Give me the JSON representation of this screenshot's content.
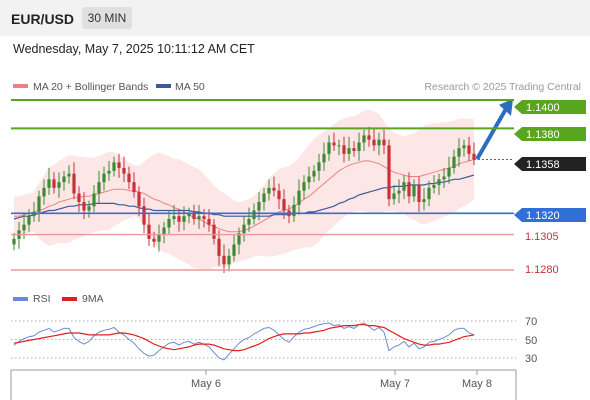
{
  "header": {
    "instrument": "EUR/USD",
    "timeframe": "30 MIN",
    "datetime": "Wednesday, May 7, 2025 10:11:12 AM CET"
  },
  "legend": {
    "ma20": "MA 20 + Bollinger Bands",
    "ma50": "MA 50",
    "copyright": "Research © 2025 Trading Central"
  },
  "colors": {
    "resistance": "#5aa51e",
    "support_main": "#2f6fd6",
    "support_red": "#e89a9a",
    "candle_up": "#3c8a34",
    "candle_down": "#c8303a",
    "bollinger_fill": "#fde2e2",
    "ma20": "#f08080",
    "ma50": "#3b5a9a",
    "rsi": "#6a8ad8",
    "rsi_ma": "#e02020",
    "arrow": "#2d6cc0"
  },
  "levels": {
    "r2": "1.1400",
    "r1": "1.1380",
    "current": "1.1358",
    "s1": "1.1320",
    "s2": "1.1305",
    "s3": "1.1280"
  },
  "rsi_legend": {
    "rsi": "RSI",
    "ma": "9MA"
  },
  "rsi_axis": [
    "70",
    "50",
    "30"
  ],
  "x_axis": [
    "May 6",
    "May 7",
    "May 8"
  ],
  "chart_data": [
    {
      "type": "candlestick",
      "title": "EUR/USD",
      "timeframe": "30 MIN",
      "ylim": [
        1.1275,
        1.1415
      ],
      "levels": [
        {
          "value": 1.14,
          "kind": "resistance"
        },
        {
          "value": 1.138,
          "kind": "resistance"
        },
        {
          "value": 1.1358,
          "kind": "last price"
        },
        {
          "value": 1.132,
          "kind": "pivot"
        },
        {
          "value": 1.1305,
          "kind": "support"
        },
        {
          "value": 1.128,
          "kind": "support"
        }
      ],
      "series": [
        {
          "name": "Close",
          "values": [
            1.1302,
            1.1308,
            1.1312,
            1.1318,
            1.1321,
            1.1332,
            1.1338,
            1.1344,
            1.1338,
            1.1342,
            1.1346,
            1.1348,
            1.1334,
            1.1328,
            1.1322,
            1.1325,
            1.1334,
            1.1342,
            1.1348,
            1.135,
            1.1356,
            1.1352,
            1.1348,
            1.1342,
            1.1335,
            1.1325,
            1.1312,
            1.1302,
            1.13,
            1.1305,
            1.131,
            1.1316,
            1.1318,
            1.1314,
            1.1318,
            1.132,
            1.1316,
            1.1318,
            1.1316,
            1.1312,
            1.1302,
            1.129,
            1.1284,
            1.129,
            1.1298,
            1.1306,
            1.1312,
            1.1316,
            1.1322,
            1.1328,
            1.1334,
            1.1338,
            1.1336,
            1.133,
            1.1322,
            1.1318,
            1.1326,
            1.1336,
            1.1342,
            1.1346,
            1.135,
            1.1356,
            1.1362,
            1.137,
            1.1368,
            1.1368,
            1.1362,
            1.1366,
            1.1364,
            1.137,
            1.1375,
            1.1372,
            1.1368,
            1.1372,
            1.1368,
            1.133,
            1.1334,
            1.1336,
            1.1342,
            1.1332,
            1.134,
            1.1328,
            1.133,
            1.1338,
            1.134,
            1.1344,
            1.1346,
            1.1352,
            1.136,
            1.1366,
            1.1368,
            1.1362,
            1.1358
          ]
        },
        {
          "name": "MA 20",
          "values": [
            1.1318,
            1.1318,
            1.1319,
            1.132,
            1.1321,
            1.1322,
            1.1323,
            1.1325,
            1.1326,
            1.1328,
            1.1329,
            1.133,
            1.1331,
            1.1331,
            1.1332,
            1.1332,
            1.1333,
            1.1334,
            1.1335,
            1.1336,
            1.1337,
            1.1337,
            1.1337,
            1.1336,
            1.1336,
            1.1335,
            1.1334,
            1.1332,
            1.133,
            1.1329,
            1.1327,
            1.1326,
            1.1324,
            1.1323,
            1.1321,
            1.1319,
            1.1317,
            1.1316,
            1.1314,
            1.1312,
            1.1311,
            1.1309,
            1.1308,
            1.1307,
            1.1307,
            1.1307,
            1.1308,
            1.1309,
            1.1311,
            1.1313,
            1.1315,
            1.1317,
            1.1319,
            1.1321,
            1.1322,
            1.1323,
            1.1325,
            1.1327,
            1.133,
            1.1332,
            1.1335,
            1.1338,
            1.1341,
            1.1344,
            1.1347,
            1.135,
            1.1352,
            1.1354,
            1.1355,
            1.1356,
            1.1357,
            1.1357,
            1.1356,
            1.1355,
            1.1353,
            1.1351,
            1.1349,
            1.1348,
            1.1347,
            1.1346,
            1.1346,
            1.1346,
            1.1347,
            1.1348,
            1.1349,
            1.135,
            1.1351,
            1.1352,
            1.1353,
            1.1355,
            1.1356,
            1.1357,
            1.1358
          ]
        },
        {
          "name": "MA 50",
          "values": [
            1.1316,
            1.1317,
            1.1318,
            1.1318,
            1.1319,
            1.132,
            1.1321,
            1.1322,
            1.1322,
            1.1323,
            1.1324,
            1.1325,
            1.1325,
            1.1326,
            1.1326,
            1.1326,
            1.1327,
            1.1327,
            1.1327,
            1.1327,
            1.1327,
            1.1326,
            1.1326,
            1.1325,
            1.1325,
            1.1324,
            1.1323,
            1.1323,
            1.1322,
            1.1322,
            1.1322,
            1.1322,
            1.1322,
            1.1322,
            1.1322,
            1.1322,
            1.1321,
            1.1321,
            1.132,
            1.132,
            1.1319,
            1.1319,
            1.1318,
            1.1318,
            1.1318,
            1.1318,
            1.1318,
            1.1318,
            1.1318,
            1.1318,
            1.1318,
            1.1318,
            1.1319,
            1.1319,
            1.1319,
            1.1319,
            1.132,
            1.132,
            1.132,
            1.1321,
            1.1321,
            1.1322,
            1.1323,
            1.1324,
            1.1325,
            1.1327,
            1.1328,
            1.133,
            1.1331,
            1.1333,
            1.1334,
            1.1335,
            1.1336,
            1.1337,
            1.1338,
            1.1338,
            1.1339,
            1.1339,
            1.1339,
            1.134,
            1.134,
            1.134,
            1.134,
            1.1341,
            1.1341,
            1.1342,
            1.1342,
            1.1343,
            1.1344,
            1.1344,
            1.1345,
            1.1346,
            1.1347
          ]
        }
      ],
      "annotation": "blue arrow pointing up toward 1.1400"
    },
    {
      "type": "line",
      "title": "RSI",
      "ylim": [
        25,
        75
      ],
      "yticks": [
        70,
        50,
        30
      ],
      "x_ticks": [
        "May 6",
        "May 7",
        "May 8"
      ],
      "series": [
        {
          "name": "RSI",
          "values": [
            44,
            48,
            51,
            53,
            54,
            58,
            60,
            62,
            58,
            60,
            62,
            62,
            52,
            48,
            45,
            48,
            54,
            58,
            60,
            61,
            63,
            58,
            55,
            50,
            46,
            40,
            35,
            32,
            33,
            38,
            42,
            46,
            47,
            44,
            47,
            48,
            45,
            47,
            45,
            42,
            36,
            30,
            28,
            34,
            40,
            46,
            50,
            52,
            56,
            59,
            62,
            63,
            60,
            55,
            50,
            47,
            53,
            58,
            61,
            62,
            64,
            66,
            67,
            68,
            65,
            66,
            62,
            64,
            62,
            66,
            68,
            64,
            60,
            63,
            58,
            38,
            42,
            44,
            48,
            42,
            46,
            40,
            42,
            47,
            48,
            50,
            52,
            55,
            60,
            62,
            62,
            57,
            55
          ]
        },
        {
          "name": "9MA",
          "values": [
            46,
            47,
            48,
            49,
            50,
            51,
            52,
            53,
            54,
            55,
            56,
            57,
            57,
            57,
            56,
            55,
            55,
            55,
            55,
            55,
            56,
            57,
            57,
            56,
            55,
            53,
            51,
            48,
            45,
            43,
            41,
            40,
            39,
            40,
            41,
            42,
            44,
            45,
            45,
            45,
            44,
            42,
            40,
            39,
            38,
            38,
            39,
            41,
            43,
            45,
            48,
            51,
            53,
            55,
            56,
            56,
            56,
            56,
            57,
            57,
            58,
            59,
            60,
            62,
            63,
            64,
            65,
            65,
            65,
            66,
            66,
            65,
            65,
            64,
            63,
            60,
            57,
            54,
            51,
            49,
            47,
            45,
            44,
            44,
            45,
            45,
            46,
            47,
            49,
            51,
            53,
            54,
            55
          ]
        }
      ]
    }
  ]
}
